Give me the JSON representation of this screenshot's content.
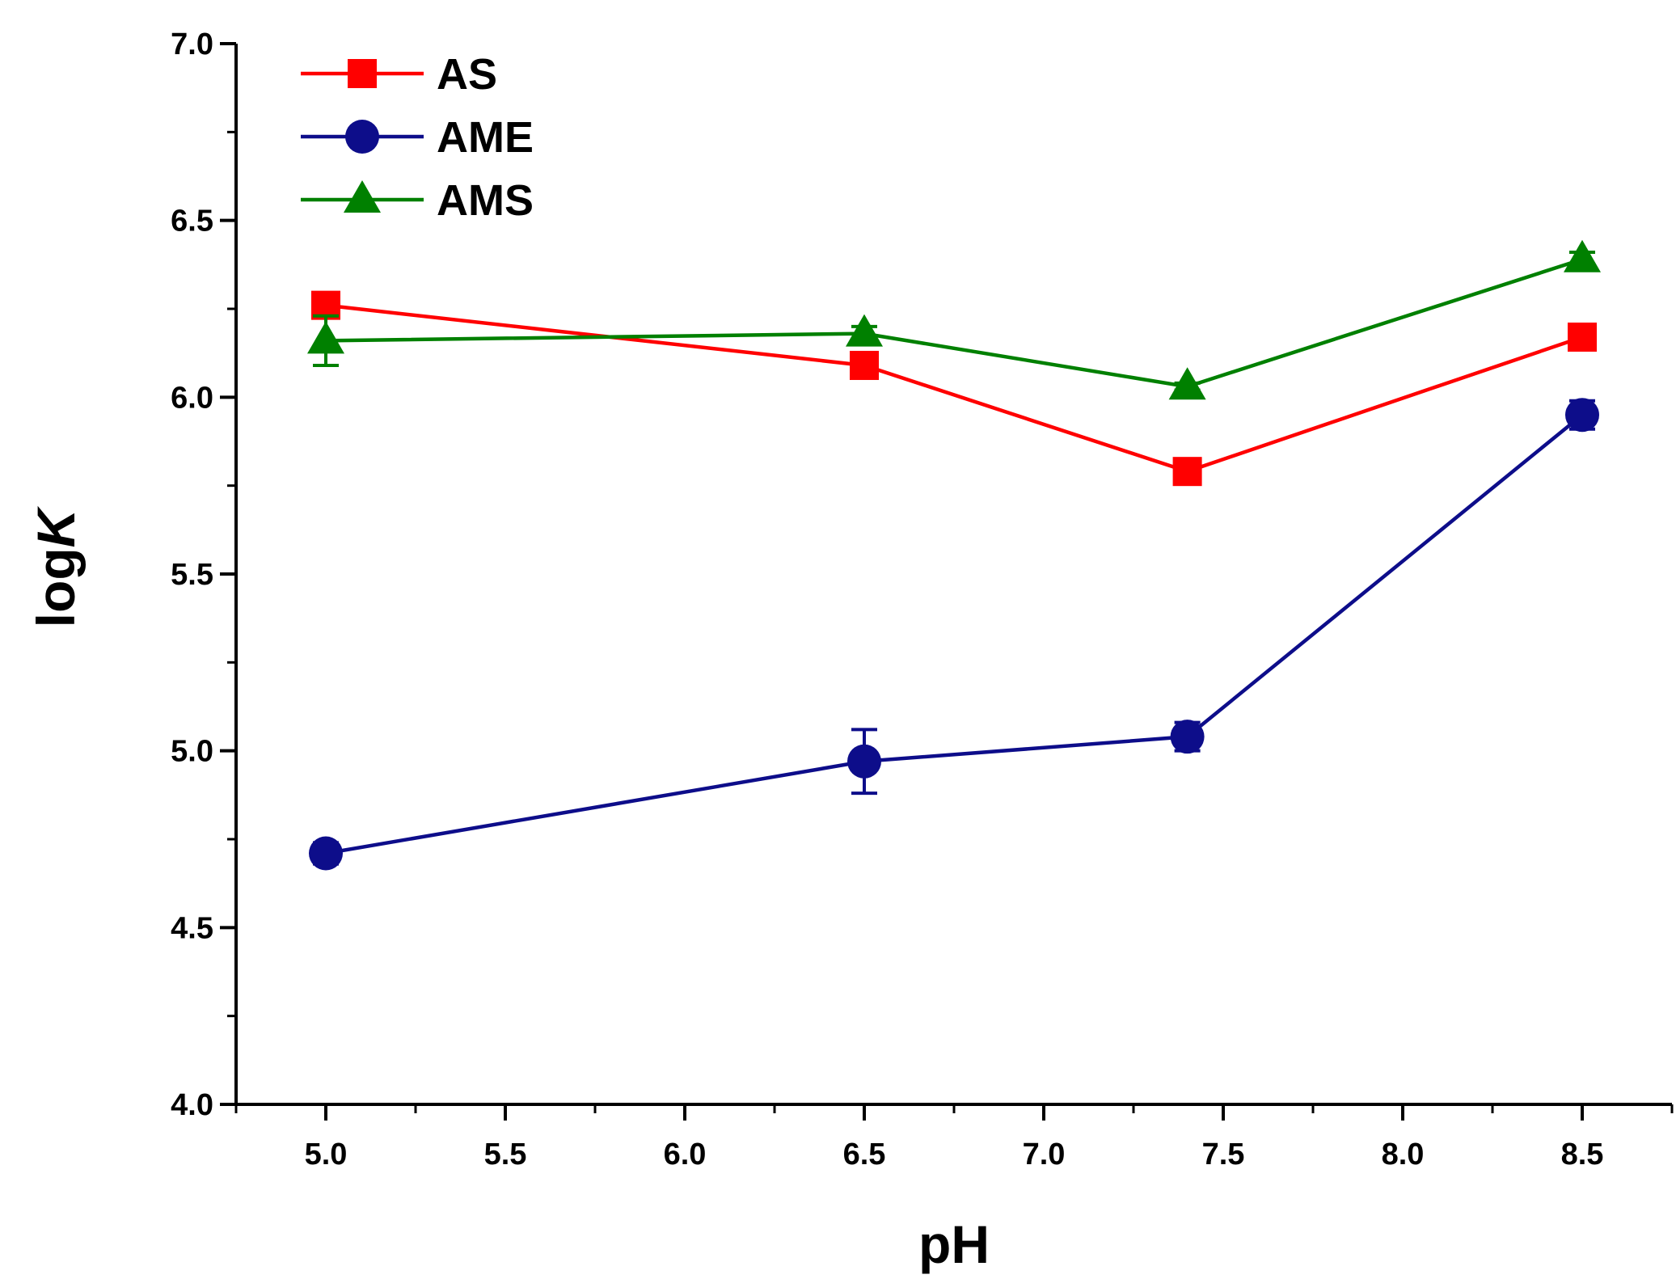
{
  "chart_data": {
    "type": "line",
    "title": "",
    "xlabel": "pH",
    "ylabel_prefix": "log",
    "ylabel_italic": "K",
    "xlim": [
      4.75,
      8.75
    ],
    "ylim": [
      4.0,
      7.0
    ],
    "x_ticks": [
      5.0,
      5.5,
      6.0,
      6.5,
      7.0,
      7.5,
      8.0,
      8.5
    ],
    "x_tick_labels": [
      "5.0",
      "5.5",
      "6.0",
      "6.5",
      "7.0",
      "7.5",
      "8.0",
      "8.5"
    ],
    "y_ticks": [
      4.0,
      4.5,
      5.0,
      5.5,
      6.0,
      6.5,
      7.0
    ],
    "y_tick_labels": [
      "4.0",
      "4.5",
      "5.0",
      "5.5",
      "6.0",
      "6.5",
      "7.0"
    ],
    "legend_position": "top-left",
    "series": [
      {
        "name": "AS",
        "color": "#ff0000",
        "marker": "square",
        "x": [
          5.0,
          6.5,
          7.4,
          8.5
        ],
        "y": [
          6.26,
          6.09,
          5.79,
          6.17
        ],
        "err": [
          0.03,
          0.02,
          0.02,
          0.02
        ]
      },
      {
        "name": "AME",
        "color": "#0d0d8a",
        "marker": "circle",
        "x": [
          5.0,
          6.5,
          7.4,
          8.5
        ],
        "y": [
          4.71,
          4.97,
          5.04,
          5.95
        ],
        "err": [
          0.03,
          0.09,
          0.04,
          0.04
        ]
      },
      {
        "name": "AMS",
        "color": "#008000",
        "marker": "triangle",
        "x": [
          5.0,
          6.5,
          7.4,
          8.5
        ],
        "y": [
          6.16,
          6.18,
          6.03,
          6.39
        ],
        "err": [
          0.07,
          0.02,
          0.01,
          0.02
        ]
      }
    ]
  }
}
